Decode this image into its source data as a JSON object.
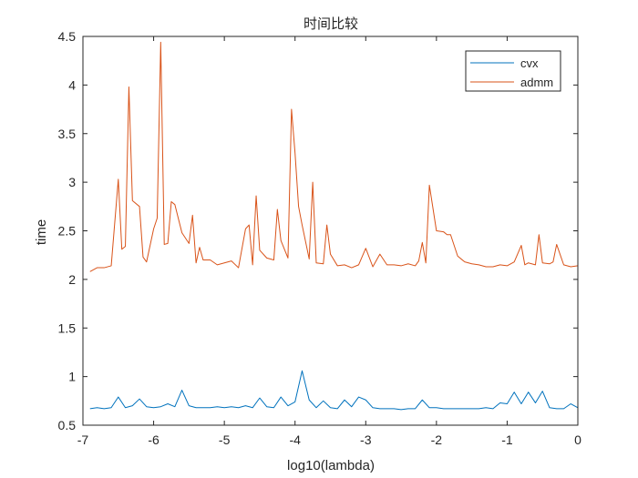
{
  "chart_data": {
    "type": "line",
    "title": "时间比较",
    "xlabel": "log10(lambda)",
    "ylabel": "time",
    "xlim": [
      -7,
      0
    ],
    "ylim": [
      0.5,
      4.5
    ],
    "xticks": [
      "-7",
      "-6",
      "-5",
      "-4",
      "-3",
      "-2",
      "-1",
      "0"
    ],
    "yticks": [
      "0.5",
      "1",
      "1.5",
      "2",
      "2.5",
      "3",
      "3.5",
      "4",
      "4.5"
    ],
    "grid": false,
    "legend_position": "top-right",
    "series": [
      {
        "name": "cvx",
        "color": "#0072BD",
        "x": [
          -6.9,
          -6.8,
          -6.7,
          -6.6,
          -6.5,
          -6.4,
          -6.3,
          -6.2,
          -6.1,
          -6.0,
          -5.9,
          -5.8,
          -5.7,
          -5.6,
          -5.5,
          -5.4,
          -5.3,
          -5.2,
          -5.1,
          -5.0,
          -4.9,
          -4.8,
          -4.7,
          -4.6,
          -4.5,
          -4.4,
          -4.3,
          -4.2,
          -4.1,
          -4.0,
          -3.9,
          -3.8,
          -3.7,
          -3.6,
          -3.5,
          -3.4,
          -3.3,
          -3.2,
          -3.1,
          -3.0,
          -2.9,
          -2.8,
          -2.7,
          -2.6,
          -2.5,
          -2.4,
          -2.3,
          -2.2,
          -2.1,
          -2.0,
          -1.9,
          -1.8,
          -1.7,
          -1.6,
          -1.5,
          -1.4,
          -1.3,
          -1.2,
          -1.1,
          -1.0,
          -0.9,
          -0.8,
          -0.7,
          -0.6,
          -0.5,
          -0.4,
          -0.3,
          -0.2,
          -0.1,
          0.0
        ],
        "values": [
          0.67,
          0.68,
          0.67,
          0.68,
          0.79,
          0.68,
          0.7,
          0.77,
          0.69,
          0.68,
          0.69,
          0.72,
          0.69,
          0.86,
          0.7,
          0.68,
          0.68,
          0.68,
          0.69,
          0.68,
          0.69,
          0.68,
          0.7,
          0.68,
          0.78,
          0.69,
          0.68,
          0.79,
          0.7,
          0.74,
          1.06,
          0.76,
          0.68,
          0.75,
          0.68,
          0.67,
          0.76,
          0.69,
          0.79,
          0.76,
          0.68,
          0.67,
          0.67,
          0.67,
          0.66,
          0.67,
          0.67,
          0.76,
          0.68,
          0.68,
          0.67,
          0.67,
          0.67,
          0.67,
          0.67,
          0.67,
          0.68,
          0.67,
          0.73,
          0.72,
          0.84,
          0.72,
          0.84,
          0.73,
          0.85,
          0.68,
          0.67,
          0.67,
          0.72,
          0.68
        ]
      },
      {
        "name": "admm",
        "color": "#D95319",
        "x": [
          -6.9,
          -6.8,
          -6.7,
          -6.6,
          -6.5,
          -6.45,
          -6.4,
          -6.35,
          -6.3,
          -6.2,
          -6.15,
          -6.1,
          -6.0,
          -5.95,
          -5.9,
          -5.85,
          -5.8,
          -5.75,
          -5.7,
          -5.6,
          -5.5,
          -5.45,
          -5.4,
          -5.35,
          -5.3,
          -5.2,
          -5.1,
          -5.0,
          -4.9,
          -4.8,
          -4.7,
          -4.65,
          -4.6,
          -4.55,
          -4.5,
          -4.4,
          -4.3,
          -4.25,
          -4.2,
          -4.1,
          -4.05,
          -4.0,
          -3.95,
          -3.9,
          -3.8,
          -3.75,
          -3.7,
          -3.6,
          -3.55,
          -3.5,
          -3.4,
          -3.3,
          -3.2,
          -3.1,
          -3.0,
          -2.9,
          -2.8,
          -2.7,
          -2.6,
          -2.5,
          -2.4,
          -2.3,
          -2.25,
          -2.2,
          -2.15,
          -2.1,
          -2.0,
          -1.9,
          -1.85,
          -1.8,
          -1.7,
          -1.6,
          -1.5,
          -1.4,
          -1.3,
          -1.2,
          -1.1,
          -1.0,
          -0.9,
          -0.8,
          -0.75,
          -0.7,
          -0.6,
          -0.55,
          -0.5,
          -0.4,
          -0.35,
          -0.3,
          -0.2,
          -0.1,
          0.0
        ],
        "values": [
          2.08,
          2.12,
          2.12,
          2.14,
          3.03,
          2.31,
          2.34,
          3.98,
          2.81,
          2.75,
          2.23,
          2.18,
          2.52,
          2.63,
          4.44,
          2.36,
          2.37,
          2.8,
          2.77,
          2.48,
          2.37,
          2.66,
          2.17,
          2.33,
          2.2,
          2.2,
          2.15,
          2.17,
          2.19,
          2.12,
          2.52,
          2.56,
          2.15,
          2.86,
          2.3,
          2.22,
          2.2,
          2.72,
          2.4,
          2.22,
          3.75,
          3.3,
          2.75,
          2.56,
          2.21,
          3.0,
          2.17,
          2.16,
          2.56,
          2.26,
          2.14,
          2.15,
          2.12,
          2.15,
          2.32,
          2.13,
          2.26,
          2.15,
          2.15,
          2.14,
          2.16,
          2.14,
          2.19,
          2.38,
          2.17,
          2.97,
          2.5,
          2.49,
          2.46,
          2.46,
          2.24,
          2.18,
          2.16,
          2.15,
          2.13,
          2.13,
          2.15,
          2.14,
          2.18,
          2.35,
          2.15,
          2.17,
          2.15,
          2.46,
          2.17,
          2.16,
          2.18,
          2.36,
          2.15,
          2.13,
          2.14
        ]
      }
    ]
  }
}
